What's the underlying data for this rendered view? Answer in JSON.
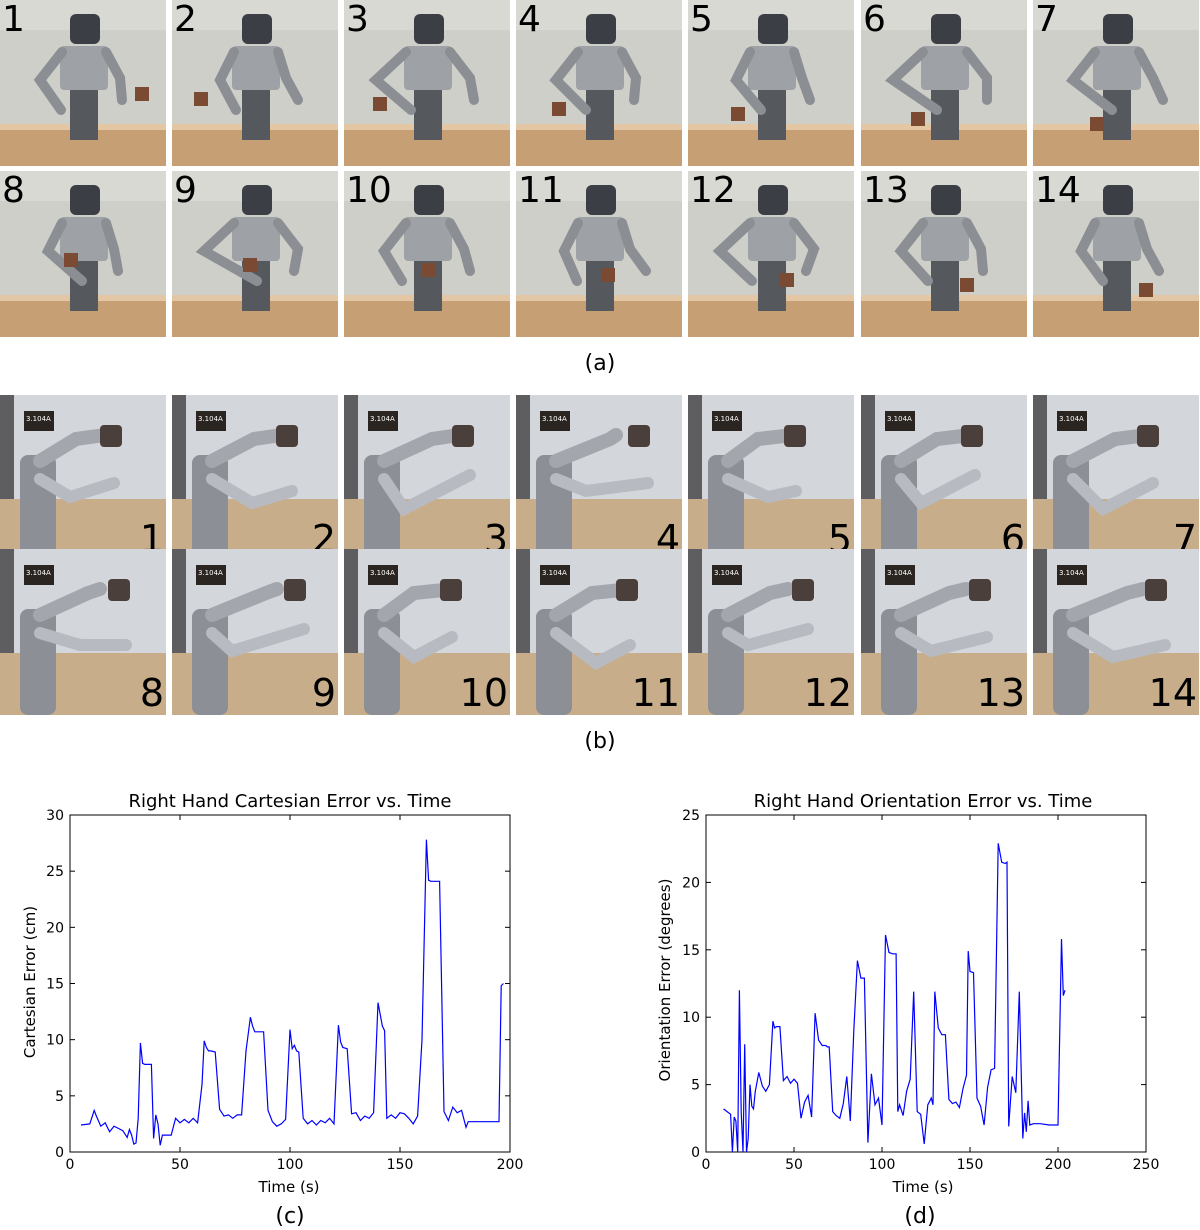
{
  "captions": {
    "a": "(a)",
    "b": "(b)",
    "c": "(c)",
    "d": "(d)"
  },
  "panel_a": {
    "row1": [
      "1",
      "2",
      "3",
      "4",
      "5",
      "6",
      "7"
    ],
    "row2": [
      "8",
      "9",
      "10",
      "11",
      "12",
      "13",
      "14"
    ]
  },
  "panel_b": {
    "row1": [
      "1",
      "2",
      "3",
      "4",
      "5",
      "6",
      "7"
    ],
    "row2": [
      "8",
      "9",
      "10",
      "11",
      "12",
      "13",
      "14"
    ],
    "door_sign": "3.104A"
  },
  "colors": {
    "line": "#0000ff",
    "wall_a": "#c9c9c3",
    "table": "#c8a27a",
    "robot": "#8a8d92"
  },
  "chart_data": [
    {
      "type": "line",
      "title": "Right Hand Cartesian Error vs. Time",
      "xlabel": "Time (s)",
      "ylabel": "Cartesian Error (cm)",
      "xlim": [
        0,
        200
      ],
      "ylim": [
        0,
        30
      ],
      "xticks": [
        0,
        50,
        100,
        150,
        200
      ],
      "yticks": [
        0,
        5,
        10,
        15,
        20,
        25,
        30
      ],
      "grid": false,
      "series": [
        {
          "x": [
            5,
            9,
            11,
            12,
            14,
            16,
            18,
            20,
            22,
            24,
            26,
            27,
            28,
            29,
            30,
            31,
            32,
            33,
            34,
            35,
            36,
            37,
            38,
            39,
            40,
            41,
            42,
            44,
            46,
            48,
            50,
            52,
            54,
            56,
            58,
            60,
            61,
            62,
            63,
            64,
            66,
            68,
            70,
            72,
            74,
            76,
            78,
            80,
            82,
            83,
            84,
            86,
            88,
            90,
            92,
            94,
            96,
            98,
            100,
            101,
            102,
            103,
            104,
            106,
            108,
            110,
            112,
            114,
            116,
            118,
            120,
            122,
            123,
            124,
            126,
            128,
            130,
            132,
            134,
            136,
            138,
            140,
            142,
            143,
            144,
            146,
            148,
            150,
            152,
            154,
            156,
            158,
            160,
            162,
            163,
            164,
            165,
            166,
            168,
            170,
            172,
            174,
            176,
            178,
            180,
            181,
            182,
            190,
            195,
            196,
            197
          ],
          "y": [
            2.4,
            2.5,
            3.7,
            3.2,
            2.3,
            2.6,
            1.8,
            2.3,
            2.1,
            1.9,
            1.3,
            2.0,
            1.5,
            0.7,
            0.8,
            3.0,
            9.7,
            7.9,
            7.8,
            7.8,
            7.8,
            7.8,
            1.2,
            3.3,
            2.5,
            0.6,
            1.5,
            1.5,
            1.5,
            3.0,
            2.6,
            2.9,
            2.6,
            3.0,
            2.6,
            6.0,
            9.9,
            9.3,
            9.0,
            9.0,
            8.9,
            3.8,
            3.2,
            3.3,
            3.0,
            3.3,
            3.3,
            9.0,
            12.0,
            11.2,
            10.7,
            10.7,
            10.7,
            3.7,
            2.7,
            2.3,
            2.5,
            2.9,
            10.9,
            9.2,
            9.5,
            9.0,
            8.9,
            3.0,
            2.5,
            2.8,
            2.4,
            2.8,
            2.6,
            3.0,
            2.5,
            11.3,
            9.8,
            9.3,
            9.2,
            3.4,
            3.5,
            2.8,
            3.2,
            3.0,
            3.5,
            13.3,
            11.2,
            10.8,
            3.0,
            3.3,
            3.0,
            3.5,
            3.4,
            3.0,
            2.5,
            3.2,
            10.0,
            27.8,
            24.2,
            24.1,
            24.1,
            24.1,
            24.1,
            3.6,
            2.8,
            4.0,
            3.5,
            3.7,
            2.2,
            2.7,
            2.7,
            2.7,
            2.7,
            14.8,
            15.0
          ]
        }
      ]
    },
    {
      "type": "line",
      "title": "Right Hand Orientation Error vs. Time",
      "xlabel": "Time (s)",
      "ylabel": "Orientation Error (degrees)",
      "xlim": [
        0,
        250
      ],
      "ylim": [
        0,
        25
      ],
      "xticks": [
        0,
        50,
        100,
        150,
        200,
        250
      ],
      "yticks": [
        0,
        5,
        10,
        15,
        20,
        25
      ],
      "grid": false,
      "series": [
        {
          "x": [
            10,
            12,
            14,
            15,
            16,
            17,
            18,
            19,
            20,
            21,
            22,
            23,
            24,
            25,
            26,
            27,
            28,
            30,
            32,
            34,
            36,
            38,
            39,
            40,
            42,
            44,
            46,
            48,
            50,
            52,
            54,
            56,
            58,
            60,
            62,
            64,
            66,
            68,
            69,
            70,
            72,
            74,
            76,
            78,
            80,
            82,
            84,
            86,
            88,
            89,
            90,
            92,
            94,
            96,
            98,
            100,
            102,
            104,
            106,
            108,
            109,
            110,
            112,
            114,
            116,
            118,
            120,
            122,
            124,
            126,
            128,
            129,
            130,
            132,
            134,
            136,
            138,
            140,
            142,
            144,
            146,
            148,
            149,
            150,
            152,
            154,
            156,
            158,
            160,
            162,
            164,
            166,
            168,
            170,
            171,
            172,
            174,
            176,
            178,
            180,
            181,
            182,
            183,
            184,
            186,
            190,
            195,
            200,
            202,
            203,
            204
          ],
          "y": [
            3.2,
            3.0,
            2.8,
            0.0,
            2.6,
            2.3,
            0.0,
            12.0,
            3.0,
            0.0,
            8.0,
            0.0,
            1.0,
            5.0,
            3.4,
            3.2,
            4.5,
            5.9,
            4.9,
            4.5,
            5.0,
            9.7,
            9.2,
            9.3,
            9.3,
            5.3,
            5.6,
            5.1,
            5.4,
            5.1,
            2.5,
            3.7,
            4.2,
            2.6,
            10.3,
            8.3,
            7.9,
            7.9,
            7.8,
            7.8,
            3.0,
            2.7,
            2.5,
            3.6,
            5.6,
            2.3,
            9.0,
            14.2,
            12.9,
            12.9,
            12.9,
            0.7,
            5.8,
            3.5,
            4.0,
            2.0,
            16.1,
            14.8,
            14.7,
            14.7,
            3.0,
            3.5,
            2.7,
            4.5,
            5.4,
            11.9,
            3.0,
            2.8,
            0.6,
            3.5,
            4.0,
            3.5,
            11.9,
            9.2,
            8.7,
            8.7,
            3.9,
            3.6,
            3.7,
            3.3,
            4.7,
            5.7,
            14.9,
            13.4,
            13.3,
            4.0,
            3.4,
            2.0,
            4.8,
            6.1,
            6.2,
            22.9,
            21.5,
            21.4,
            21.5,
            1.9,
            5.6,
            4.4,
            11.9,
            1.0,
            2.9,
            1.5,
            3.8,
            2.0,
            2.1,
            2.1,
            2.0,
            2.0,
            15.8,
            11.6,
            12.0
          ]
        }
      ]
    }
  ]
}
